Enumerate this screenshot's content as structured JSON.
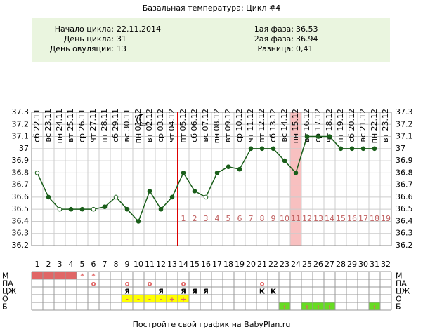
{
  "chart_data": {
    "type": "line",
    "title": "Базальная температура: Цикл #4",
    "info": [
      {
        "label": "Начало цикла:",
        "value": "22.11.2014"
      },
      {
        "label": "День цикла:",
        "value": 31
      },
      {
        "label": "День овуляции:",
        "value": 13
      }
    ],
    "phases": [
      {
        "label": "1ая фаза:",
        "value": 36.53
      },
      {
        "label": "2ая фаза:",
        "value": 36.94
      },
      {
        "label": "Разница:",
        "value": "0,41"
      }
    ],
    "dates": [
      "сб 22.11",
      "вс 23.11",
      "пн 24.11",
      "вт 25.11",
      "ср 26.11",
      "чт 27.11",
      "пт 28.11",
      "сб 29.11",
      "вс 30.11",
      "пн 01.12",
      "вт 02.12",
      "ср 03.12",
      "чт 04.12",
      "пт 05.12",
      "сб 06.12",
      "вс 07.12",
      "пн 08.12",
      "вт 09.12",
      "ср 10.12",
      "чт 11.12",
      "пт 12.12",
      "сб 13.12",
      "вс 14.12",
      "пн 15.12",
      "вт 16.12",
      "ср 17.12",
      "чт 18.12",
      "пт 19.12",
      "сб 20.12",
      "вс 21.12",
      "пн 22.12",
      "вт 23.12"
    ],
    "categories": [
      1,
      2,
      3,
      4,
      5,
      6,
      7,
      8,
      9,
      10,
      11,
      12,
      13,
      14,
      15,
      16,
      17,
      18,
      19,
      20,
      21,
      22,
      23,
      24,
      25,
      26,
      27,
      28,
      29,
      30,
      31,
      32
    ],
    "values": [
      36.8,
      36.6,
      36.5,
      36.5,
      36.5,
      36.5,
      36.52,
      36.6,
      36.5,
      36.4,
      36.65,
      36.5,
      36.6,
      36.8,
      36.65,
      36.6,
      36.8,
      36.85,
      36.83,
      37.0,
      37.0,
      37.0,
      36.9,
      36.8,
      37.1,
      37.1,
      37.1,
      37.0,
      37.0,
      37.0,
      37.0,
      null
    ],
    "hollow": [
      true,
      false,
      true,
      false,
      false,
      true,
      false,
      true,
      false,
      false,
      false,
      false,
      false,
      false,
      false,
      true,
      false,
      false,
      false,
      false,
      false,
      false,
      false,
      false,
      false,
      false,
      false,
      false,
      false,
      false,
      false,
      false
    ],
    "color": "#1a5e1a",
    "luteal_days": [
      1,
      2,
      3,
      4,
      5,
      6,
      7,
      8,
      9,
      10,
      11,
      12,
      13,
      14,
      15,
      16,
      17,
      18,
      19
    ],
    "highlight_days": [
      24
    ],
    "ylim": [
      36.2,
      37.3
    ],
    "yticks": [
      36.2,
      36.3,
      36.4,
      36.5,
      36.6,
      36.7,
      36.8,
      36.9,
      37.0,
      37.1,
      37.2,
      37.3
    ],
    "grid": true,
    "table": [
      {
        "label": "М",
        "filled_days": [
          1,
          2,
          3,
          4
        ],
        "fill": "#e06666",
        "marks": [
          {
            "day": 5,
            "text": "*"
          },
          {
            "day": 6,
            "text": "*"
          }
        ],
        "color": "#e06666"
      },
      {
        "label": "ПА",
        "filled_days": [],
        "fill": "#ffffff",
        "marks": [
          {
            "day": 6,
            "text": "o"
          },
          {
            "day": 9,
            "text": "o"
          },
          {
            "day": 11,
            "text": "o"
          },
          {
            "day": 14,
            "text": "o"
          },
          {
            "day": 21,
            "text": "o"
          }
        ],
        "color": "#e06666"
      },
      {
        "label": "ЦЖ",
        "filled_days": [],
        "fill": "#ffffff",
        "marks": [
          {
            "day": 9,
            "text": "Я"
          },
          {
            "day": 12,
            "text": "Я"
          },
          {
            "day": 14,
            "text": "Я"
          },
          {
            "day": 15,
            "text": "Я"
          },
          {
            "day": 16,
            "text": "Я"
          },
          {
            "day": 21,
            "text": "К"
          },
          {
            "day": 22,
            "text": "К"
          }
        ],
        "color": "#000000"
      },
      {
        "label": "О",
        "filled_days": [
          9,
          10,
          11,
          12,
          13,
          14
        ],
        "fill": "#ffff00",
        "marks": [
          {
            "day": 9,
            "text": "-"
          },
          {
            "day": 10,
            "text": "-"
          },
          {
            "day": 11,
            "text": "-"
          },
          {
            "day": 12,
            "text": "-"
          },
          {
            "day": 13,
            "text": "+"
          },
          {
            "day": 14,
            "text": "+"
          }
        ],
        "color": "#e06666"
      },
      {
        "label": "Б",
        "filled_days": [
          23,
          25,
          26,
          27,
          31
        ],
        "fill": "#66dd22",
        "marks": [
          {
            "day": 23,
            "text": "+"
          },
          {
            "day": 25,
            "text": "+"
          },
          {
            "day": 26,
            "text": "+"
          },
          {
            "day": 27,
            "text": "+"
          },
          {
            "day": 31,
            "text": "+"
          }
        ],
        "color": "#e06666"
      }
    ],
    "footer": "Постройте свой график на BabyPlan.ru"
  }
}
